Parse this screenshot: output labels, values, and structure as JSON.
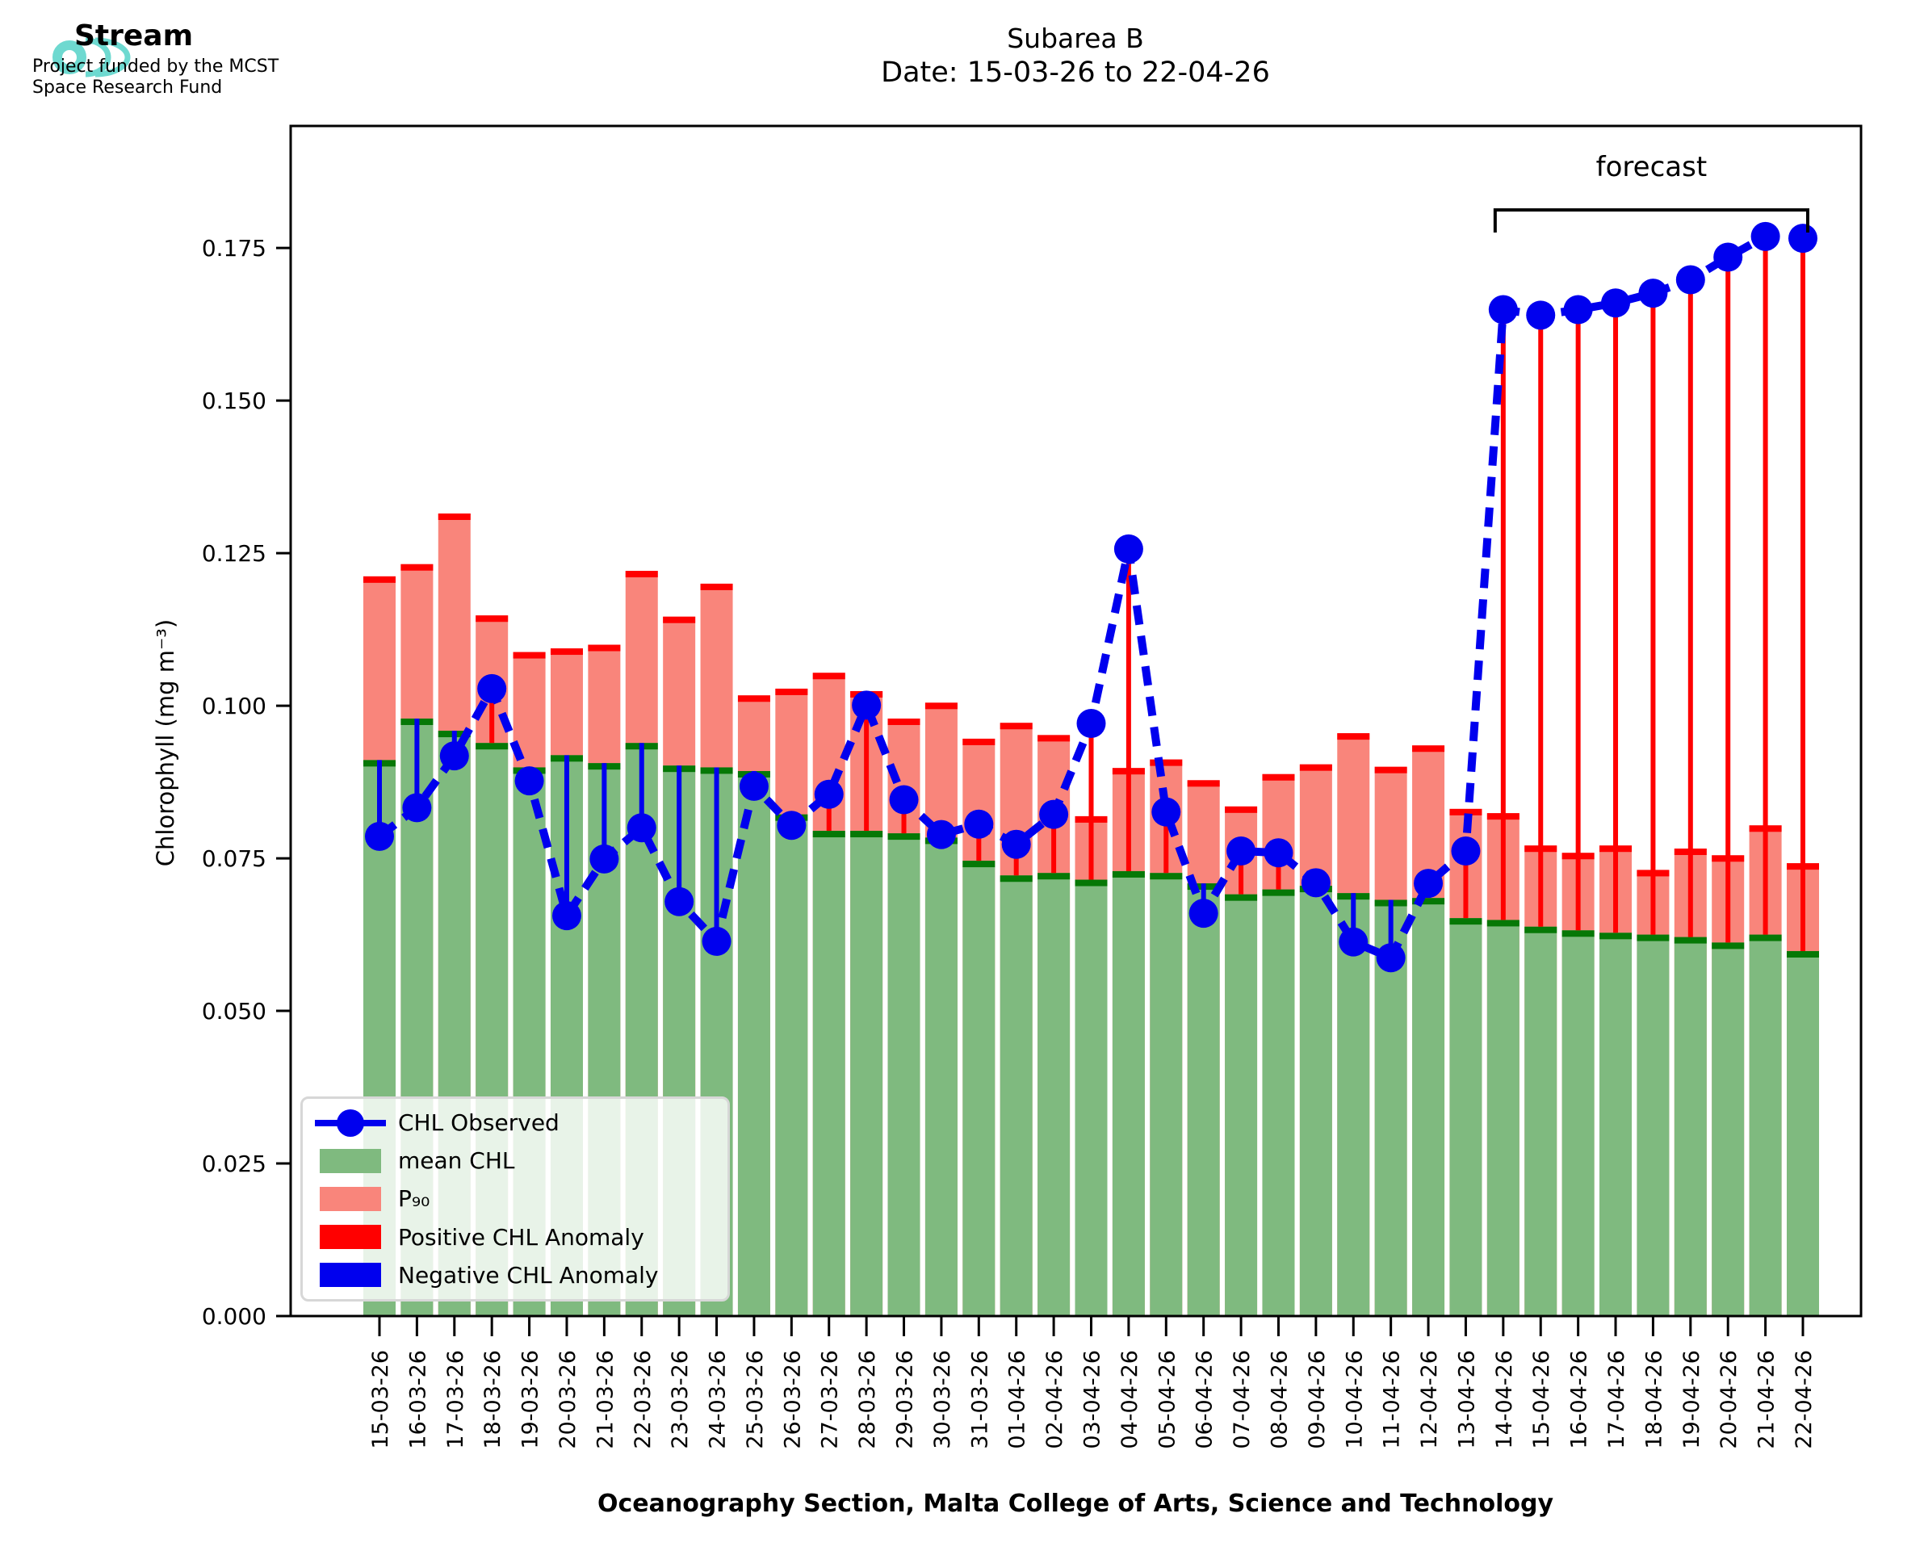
{
  "header": {
    "logo_title": "Stream",
    "logo_subtitle_line1": "Project funded by the MCST",
    "logo_subtitle_line2": "Space Research Fund",
    "title_line1": "Subarea B",
    "title_line2": "Date: 15-03-26 to 22-04-26"
  },
  "annotations": {
    "forecast_label": "forecast"
  },
  "axes": {
    "ylabel": "Chlorophyll (mg m⁻³)",
    "xlabel": "Oceanography Section, Malta College of Arts, Science and Technology",
    "ylim": [
      0,
      0.195
    ],
    "yticks": [
      {
        "value": 0.0,
        "label": "0.000"
      },
      {
        "value": 0.025,
        "label": "0.025"
      },
      {
        "value": 0.05,
        "label": "0.050"
      },
      {
        "value": 0.075,
        "label": "0.075"
      },
      {
        "value": 0.1,
        "label": "0.100"
      },
      {
        "value": 0.125,
        "label": "0.125"
      },
      {
        "value": 0.15,
        "label": "0.150"
      },
      {
        "value": 0.175,
        "label": "0.175"
      }
    ]
  },
  "colors": {
    "p90_fill": "#F9857B",
    "p90_cap": "#FF0000",
    "mean_fill": "#7FBA7F",
    "mean_cap": "#067806",
    "observed": "#0000EE",
    "positive_anomaly": "#FF0000",
    "negative_anomaly": "#0000EE",
    "logo_teal": "#6ED9D0"
  },
  "legend": {
    "entries": [
      {
        "label": "CHL Observed",
        "type": "line-dot",
        "color": "#0000EE"
      },
      {
        "label": "mean CHL",
        "type": "patch",
        "color": "#7FBA7F"
      },
      {
        "label": "P₉₀",
        "type": "patch",
        "color": "#F9857B"
      },
      {
        "label": "Positive CHL Anomaly",
        "type": "patch",
        "color": "#FF0000"
      },
      {
        "label": "Negative CHL Anomaly",
        "type": "patch",
        "color": "#0000EE"
      }
    ]
  },
  "chart_data": {
    "type": "bar",
    "title": "Subarea B",
    "subtitle": "Date: 15-03-26 to 22-04-26",
    "forecast_start_index": 30,
    "categories": [
      "15-03-26",
      "16-03-26",
      "17-03-26",
      "18-03-26",
      "19-03-26",
      "20-03-26",
      "21-03-26",
      "22-03-26",
      "23-03-26",
      "24-03-26",
      "25-03-26",
      "26-03-26",
      "27-03-26",
      "28-03-26",
      "29-03-26",
      "30-03-26",
      "31-03-26",
      "01-04-26",
      "02-04-26",
      "03-04-26",
      "04-04-26",
      "05-04-26",
      "06-04-26",
      "07-04-26",
      "08-04-26",
      "09-04-26",
      "10-04-26",
      "11-04-26",
      "12-04-26",
      "13-04-26",
      "14-04-26",
      "15-04-26",
      "16-04-26",
      "17-04-26",
      "18-04-26",
      "19-04-26",
      "20-04-26",
      "21-04-26",
      "22-04-26"
    ],
    "series": [
      {
        "name": "P90",
        "type": "bar",
        "values": [
          0.1212,
          0.1232,
          0.1315,
          0.1148,
          0.1088,
          0.1094,
          0.11,
          0.1221,
          0.1146,
          0.12,
          0.1017,
          0.1028,
          0.1054,
          0.1024,
          0.0979,
          0.1005,
          0.0946,
          0.0972,
          0.0952,
          0.0819,
          0.0898,
          0.0912,
          0.0878,
          0.0835,
          0.0888,
          0.0904,
          0.0955,
          0.09,
          0.0935,
          0.0831,
          0.0824,
          0.0771,
          0.0759,
          0.0771,
          0.0731,
          0.0766,
          0.0755,
          0.0804,
          0.0742
        ]
      },
      {
        "name": "mean CHL",
        "type": "bar",
        "values": [
          0.0911,
          0.0979,
          0.0959,
          0.0939,
          0.0899,
          0.0919,
          0.0906,
          0.0939,
          0.0902,
          0.0899,
          0.0893,
          0.0822,
          0.0795,
          0.0795,
          0.0791,
          0.0784,
          0.0746,
          0.0722,
          0.0726,
          0.0715,
          0.0729,
          0.0726,
          0.0709,
          0.0691,
          0.0699,
          0.0705,
          0.0693,
          0.0682,
          0.0685,
          0.0652,
          0.0649,
          0.0638,
          0.0632,
          0.0628,
          0.0625,
          0.0621,
          0.0612,
          0.0625,
          0.0598
        ]
      },
      {
        "name": "CHL Observed",
        "type": "line",
        "values": [
          0.0786,
          0.0833,
          0.0918,
          0.1028,
          0.0877,
          0.0656,
          0.0749,
          0.08,
          0.0679,
          0.0614,
          0.0868,
          0.0804,
          0.0855,
          0.1001,
          0.0846,
          0.0789,
          0.0806,
          0.0773,
          0.0822,
          0.0971,
          0.1257,
          0.0826,
          0.066,
          0.0762,
          0.0759,
          0.071,
          0.0613,
          0.0587,
          0.0709,
          0.0762,
          0.1649,
          0.164,
          0.1649,
          0.166,
          0.1676,
          0.1698,
          0.1735,
          0.1769,
          0.1766
        ]
      }
    ]
  }
}
